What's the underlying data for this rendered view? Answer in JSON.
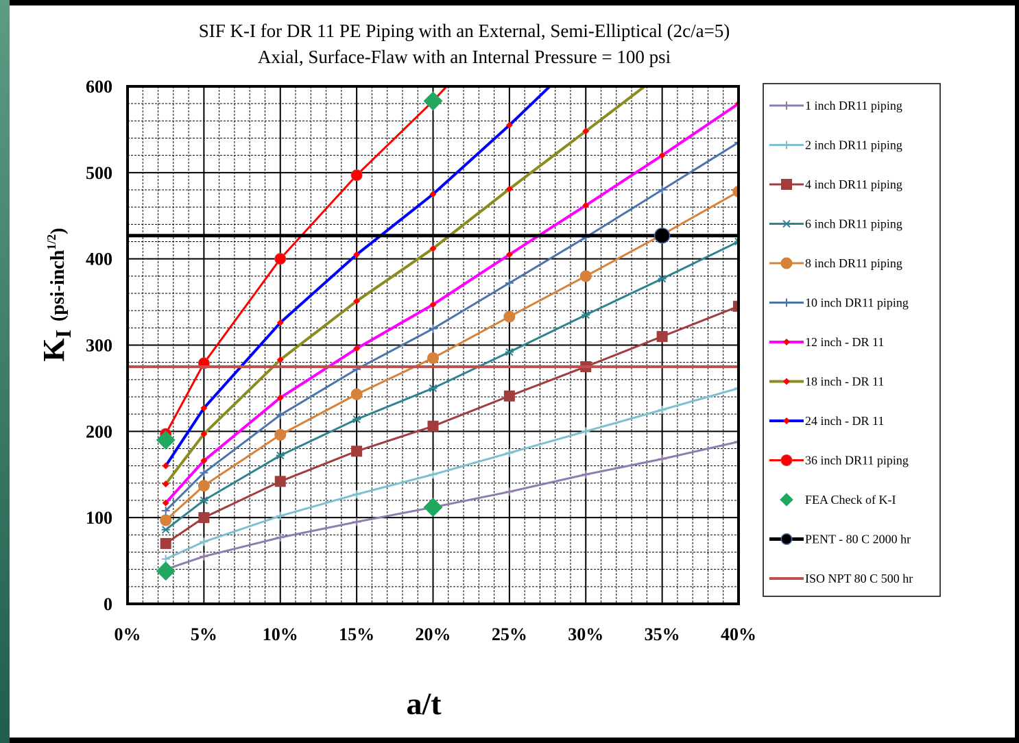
{
  "chart_data": {
    "type": "line",
    "title": "SIF K-I for DR 11 PE Piping with an External, Semi-Elliptical (2c/a=5)",
    "subtitle": "Axial, Surface-Flaw with an Internal Pressure = 100 psi",
    "xlabel": "a/t",
    "ylabel_main": "K",
    "ylabel_sub": "I",
    "ylabel_units": "(psi-inch",
    "ylabel_units_exp": "1/2",
    "ylabel_units_close": ")",
    "xlim": [
      0,
      0.4
    ],
    "ylim": [
      0,
      600
    ],
    "x_ticks": [
      0,
      0.05,
      0.1,
      0.15,
      0.2,
      0.25,
      0.3,
      0.35,
      0.4
    ],
    "x_tick_labels": [
      "0%",
      "5%",
      "10%",
      "15%",
      "20%",
      "25%",
      "30%",
      "35%",
      "40%"
    ],
    "y_ticks": [
      0,
      100,
      200,
      300,
      400,
      500,
      600
    ],
    "y_tick_labels": [
      "0",
      "100",
      "200",
      "300",
      "400",
      "500",
      "600"
    ],
    "grid": true,
    "legend_position": "right",
    "series": [
      {
        "name": "1 inch DR11 piping",
        "color": "#8e7cae",
        "width": 3,
        "marker": "plus",
        "x": [
          0.025,
          0.05,
          0.1,
          0.15,
          0.2,
          0.25,
          0.3,
          0.35,
          0.4
        ],
        "y": [
          40,
          55,
          77,
          95,
          112,
          130,
          150,
          168,
          188
        ]
      },
      {
        "name": "2 inch DR11 piping",
        "color": "#7fbfcf",
        "width": 3,
        "marker": "plus",
        "x": [
          0.025,
          0.05,
          0.1,
          0.15,
          0.2,
          0.25,
          0.3,
          0.35,
          0.4
        ],
        "y": [
          52,
          72,
          102,
          127,
          150,
          175,
          200,
          225,
          250
        ]
      },
      {
        "name": "4 inch DR11 piping",
        "color": "#a33d3d",
        "width": 3,
        "marker": "square",
        "x": [
          0.025,
          0.05,
          0.1,
          0.15,
          0.2,
          0.25,
          0.3,
          0.35,
          0.4
        ],
        "y": [
          70,
          100,
          142,
          177,
          206,
          241,
          275,
          310,
          345
        ]
      },
      {
        "name": "6 inch DR11 piping",
        "color": "#2f8391",
        "width": 3,
        "marker": "star",
        "x": [
          0.025,
          0.05,
          0.1,
          0.15,
          0.2,
          0.25,
          0.3,
          0.35,
          0.4
        ],
        "y": [
          86,
          120,
          172,
          214,
          250,
          292,
          335,
          377,
          420
        ]
      },
      {
        "name": "8 inch DR11 piping",
        "color": "#d7823a",
        "width": 3,
        "marker": "circle",
        "x": [
          0.025,
          0.05,
          0.1,
          0.15,
          0.2,
          0.25,
          0.3,
          0.35,
          0.4
        ],
        "y": [
          97,
          137,
          196,
          243,
          285,
          333,
          380,
          428,
          478
        ]
      },
      {
        "name": "10 inch DR11 piping",
        "color": "#4a74ad",
        "width": 3,
        "marker": "plus",
        "x": [
          0.025,
          0.05,
          0.1,
          0.15,
          0.2,
          0.25,
          0.3,
          0.35,
          0.4
        ],
        "y": [
          108,
          152,
          219,
          272,
          319,
          372,
          425,
          480,
          535
        ]
      },
      {
        "name": "12 inch - DR 11",
        "color": "#ff00ff",
        "width": 4,
        "marker": "diamond",
        "x": [
          0.025,
          0.05,
          0.1,
          0.15,
          0.2,
          0.25,
          0.3,
          0.35,
          0.4
        ],
        "y": [
          117,
          166,
          239,
          296,
          347,
          405,
          462,
          520,
          580
        ]
      },
      {
        "name": "18 inch - DR 11",
        "color": "#8b8b1e",
        "width": 4,
        "marker": "diamond",
        "x": [
          0.025,
          0.05,
          0.1,
          0.15,
          0.2,
          0.25,
          0.3,
          0.343
        ],
        "y": [
          139,
          197,
          283,
          351,
          412,
          481,
          548,
          606
        ]
      },
      {
        "name": "24 inch - DR 11",
        "color": "#0000ff",
        "width": 4,
        "marker": "diamond",
        "x": [
          0.025,
          0.05,
          0.1,
          0.15,
          0.2,
          0.25,
          0.28
        ],
        "y": [
          160,
          227,
          326,
          405,
          475,
          555,
          606
        ]
      },
      {
        "name": "36 inch DR11 piping",
        "color": "#ff0000",
        "width": 3,
        "marker": "circle",
        "x": [
          0.025,
          0.05,
          0.1,
          0.15,
          0.2,
          0.212
        ],
        "y": [
          197,
          279,
          400,
          497,
          583,
          606
        ]
      },
      {
        "name": "FEA Check of K-I",
        "color": "#20a860",
        "width": 0,
        "marker": "bigdiamond",
        "x": [
          0.025,
          0.025,
          0.2,
          0.2
        ],
        "y": [
          38,
          190,
          112,
          583
        ]
      },
      {
        "name": "PENT - 80 C 2000 hr",
        "color": "#000000",
        "width": 5,
        "marker": "bigcircle",
        "x": [
          0,
          0.4
        ],
        "y": [
          427,
          427
        ],
        "marker_x": [
          0.35
        ],
        "marker_y": [
          427
        ]
      },
      {
        "name": "ISO NPT 80 C 500 hr",
        "color": "#c0504d",
        "width": 4,
        "marker": "none",
        "x": [
          0,
          0.4
        ],
        "y": [
          275,
          275
        ]
      }
    ]
  }
}
